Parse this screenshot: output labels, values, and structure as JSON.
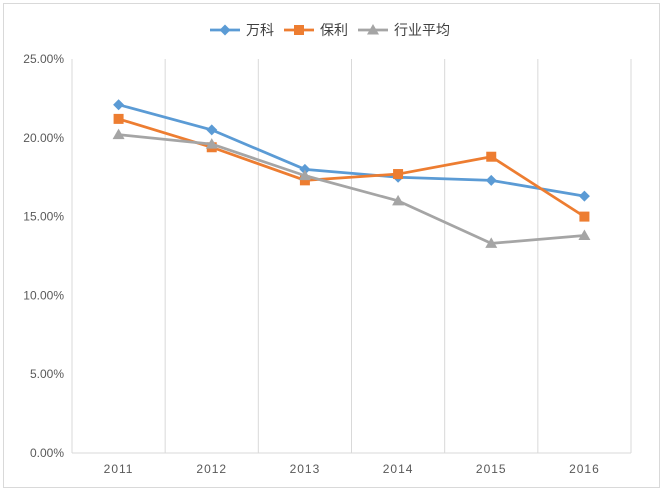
{
  "chart_data": {
    "type": "line",
    "title": "",
    "xlabel": "",
    "ylabel": "",
    "categories": [
      "2011",
      "2012",
      "2013",
      "2014",
      "2015",
      "2016"
    ],
    "ylim": [
      0,
      25
    ],
    "yticks": [
      0,
      5,
      10,
      15,
      20,
      25
    ],
    "ytick_labels": [
      "0.00%",
      "5.00%",
      "10.00%",
      "15.00%",
      "20.00%",
      "25.00%"
    ],
    "grid": "vertical",
    "legend_position": "top",
    "series": [
      {
        "name": "万科",
        "values": [
          22.1,
          20.5,
          18.0,
          17.5,
          17.3,
          16.3
        ],
        "color": "#5b9bd5",
        "marker": "diamond"
      },
      {
        "name": "保利",
        "values": [
          21.2,
          19.4,
          17.3,
          17.7,
          18.8,
          15.0
        ],
        "color": "#ed7d31",
        "marker": "square"
      },
      {
        "name": "行业平均",
        "values": [
          20.2,
          19.6,
          17.6,
          16.0,
          13.3,
          13.8
        ],
        "color": "#a5a5a5",
        "marker": "triangle"
      }
    ]
  }
}
